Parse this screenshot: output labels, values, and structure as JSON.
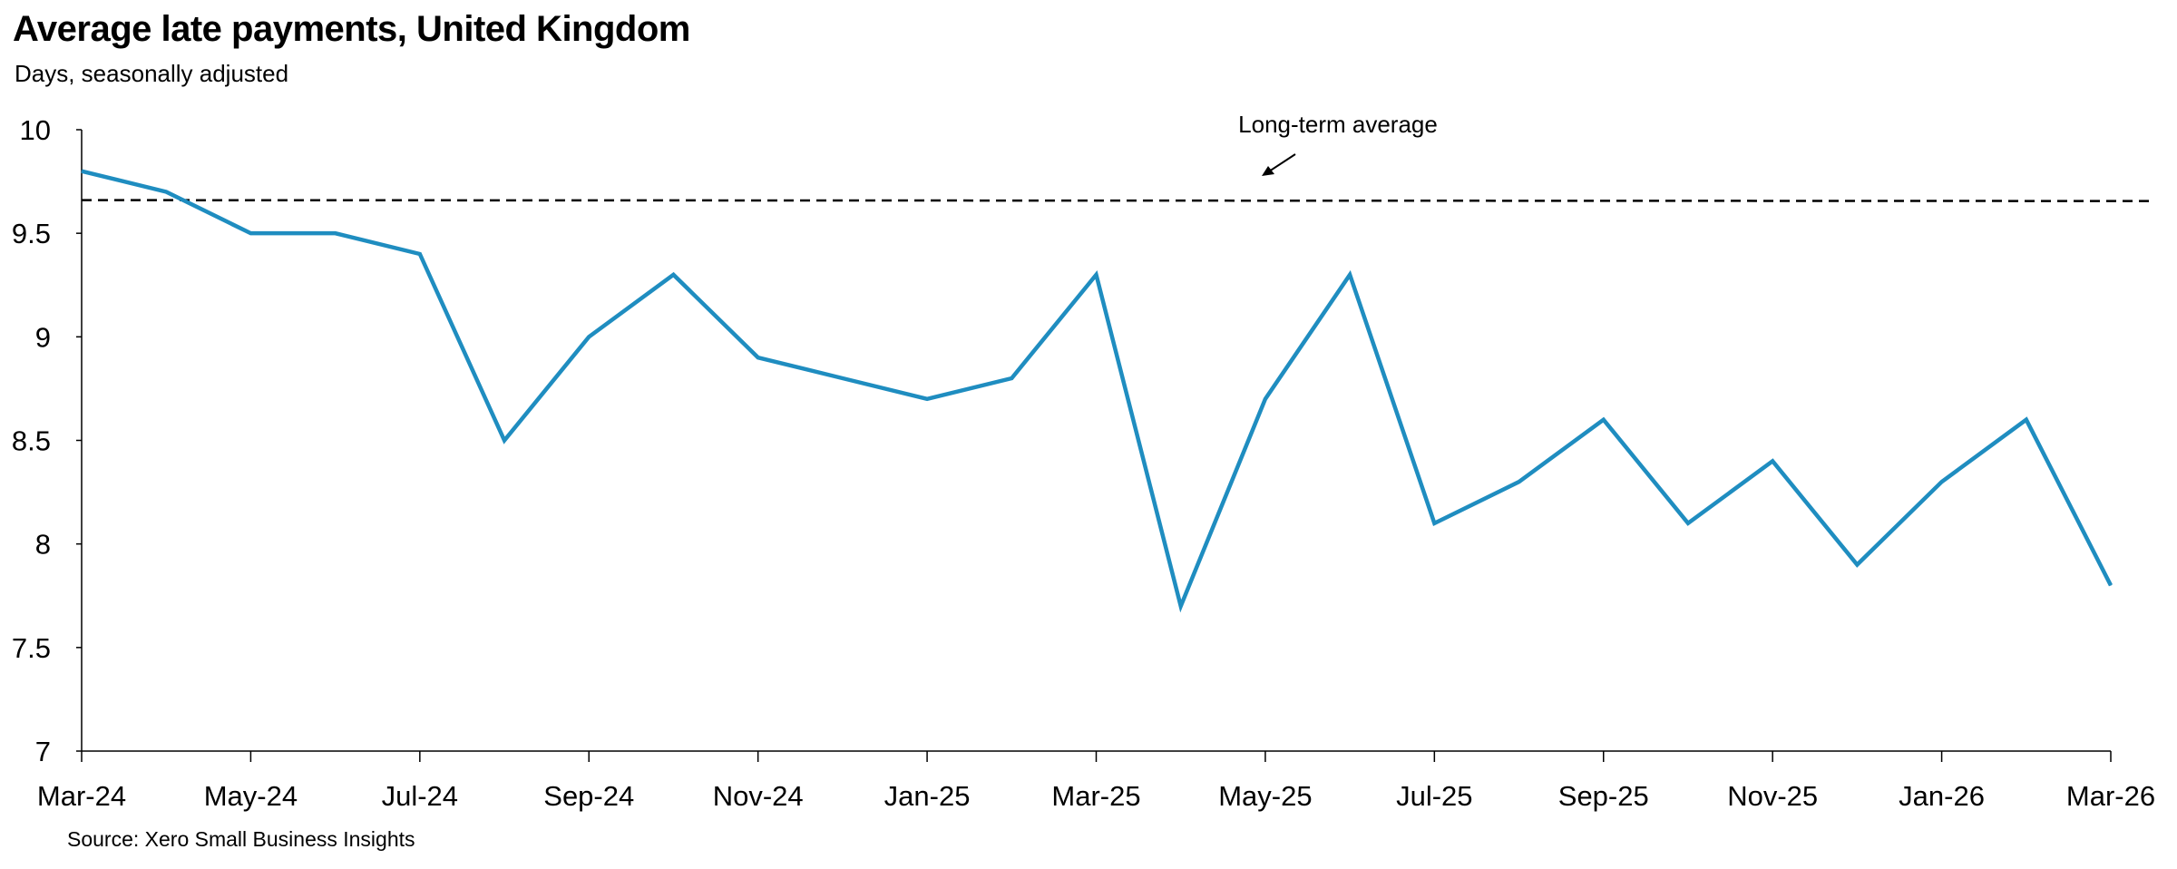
{
  "header": {
    "title": "Average late payments, United Kingdom",
    "subtitle": "Days, seasonally adjusted"
  },
  "footer": {
    "source": "Source: Xero Small Business Insights"
  },
  "colors": {
    "series_line": "#1f8dc0",
    "reference_line": "#000000",
    "axis": "#000000"
  },
  "chart_data": {
    "type": "line",
    "title": "Average late payments, United Kingdom",
    "subtitle": "Days, seasonally adjusted",
    "xlabel": "",
    "ylabel": "",
    "ylim": [
      7,
      10
    ],
    "yticks": [
      "10",
      "9.5",
      "9",
      "8.5",
      "8",
      "7.5",
      "7"
    ],
    "ytick_values": [
      10,
      9.5,
      9,
      8.5,
      8,
      7.5,
      7
    ],
    "x": [
      "Mar-24",
      "Apr-24",
      "May-24",
      "Jun-24",
      "Jul-24",
      "Aug-24",
      "Sep-24",
      "Oct-24",
      "Nov-24",
      "Dec-24",
      "Jan-25",
      "Feb-25",
      "Mar-25",
      "Apr-25",
      "May-25",
      "Jun-25",
      "Jul-25",
      "Aug-25",
      "Sep-25",
      "Oct-25",
      "Nov-25",
      "Dec-25",
      "Jan-26",
      "Feb-26",
      "Mar-26"
    ],
    "xtick_labels": [
      "Mar-24",
      "May-24",
      "Jul-24",
      "Sep-24",
      "Nov-24",
      "Jan-25",
      "Mar-25",
      "May-25",
      "Jul-25",
      "Sep-25",
      "Nov-25",
      "Jan-26",
      "Mar-26"
    ],
    "series": [
      {
        "values": [
          9.8,
          9.7,
          9.5,
          9.5,
          9.4,
          8.5,
          9.0,
          9.3,
          8.9,
          8.8,
          8.7,
          8.8,
          9.3,
          7.7,
          8.7,
          9.3,
          8.1,
          8.3,
          8.6,
          8.1,
          8.4,
          7.9,
          8.3,
          8.6,
          7.8
        ]
      }
    ],
    "reference_line": {
      "label": "Long-term average",
      "value": 9.66,
      "style": "dashed"
    },
    "grid": false,
    "legend": "none"
  }
}
